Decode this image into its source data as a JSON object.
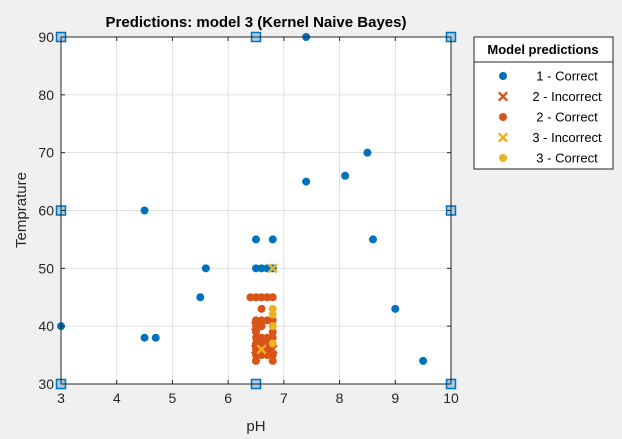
{
  "chart_data": {
    "type": "scatter",
    "title": "Predictions: model 3 (Kernel Naive Bayes)",
    "xlabel": "pH",
    "ylabel": "Temprature",
    "xlim": [
      3,
      10
    ],
    "ylim": [
      30,
      90
    ],
    "xticks": [
      "3",
      "4",
      "5",
      "6",
      "7",
      "8",
      "9",
      "10"
    ],
    "yticks": [
      "30",
      "40",
      "50",
      "60",
      "70",
      "80",
      "90"
    ],
    "grid": true,
    "legend": {
      "title": "Model predictions",
      "placement": "outside-right-top"
    },
    "series": [
      {
        "name": "1 - Correct",
        "marker": "circle",
        "color": "#0072bd",
        "points": [
          [
            3,
            40
          ],
          [
            4.5,
            38
          ],
          [
            4.7,
            38
          ],
          [
            4.5,
            60
          ],
          [
            5.5,
            45
          ],
          [
            5.6,
            50
          ],
          [
            6.5,
            55
          ],
          [
            6.8,
            55
          ],
          [
            6.5,
            50
          ],
          [
            6.6,
            50
          ],
          [
            6.7,
            50
          ],
          [
            6.8,
            50
          ],
          [
            7.4,
            65
          ],
          [
            7.4,
            90
          ],
          [
            8.1,
            66
          ],
          [
            8.5,
            70
          ],
          [
            8.6,
            55
          ],
          [
            9.0,
            43
          ],
          [
            9.5,
            34
          ]
        ]
      },
      {
        "name": "2 - Incorrect",
        "marker": "x",
        "color": "#d95319",
        "points": [
          [
            6.5,
            40
          ],
          [
            6.5,
            36
          ],
          [
            6.8,
            36
          ]
        ]
      },
      {
        "name": "2 - Correct",
        "marker": "circle",
        "color": "#d95319",
        "points": [
          [
            6.4,
            45
          ],
          [
            6.5,
            45
          ],
          [
            6.6,
            45
          ],
          [
            6.7,
            45
          ],
          [
            6.8,
            45
          ],
          [
            6.6,
            43
          ],
          [
            6.5,
            41
          ],
          [
            6.6,
            41
          ],
          [
            6.7,
            41
          ],
          [
            6.8,
            41
          ],
          [
            6.5,
            40
          ],
          [
            6.6,
            40
          ],
          [
            6.5,
            39
          ],
          [
            6.8,
            39
          ],
          [
            6.5,
            38
          ],
          [
            6.6,
            38
          ],
          [
            6.7,
            38
          ],
          [
            6.8,
            38
          ],
          [
            6.5,
            37
          ],
          [
            6.6,
            37
          ],
          [
            6.7,
            37
          ],
          [
            6.5,
            36
          ],
          [
            6.6,
            36
          ],
          [
            6.7,
            36
          ],
          [
            6.5,
            35
          ],
          [
            6.6,
            35
          ],
          [
            6.7,
            35
          ],
          [
            6.8,
            35
          ],
          [
            6.5,
            34
          ],
          [
            6.8,
            34
          ]
        ]
      },
      {
        "name": "3 - Incorrect",
        "marker": "x",
        "color": "#edb120",
        "points": [
          [
            6.8,
            50
          ],
          [
            6.6,
            36
          ]
        ]
      },
      {
        "name": "3 - Correct",
        "marker": "circle",
        "color": "#edb120",
        "points": [
          [
            6.8,
            43
          ],
          [
            6.8,
            42
          ],
          [
            6.8,
            40
          ],
          [
            6.8,
            37
          ]
        ]
      }
    ],
    "boundary_points": {
      "marker": "square",
      "color": "#0072bd",
      "fill": "#a6cce8",
      "points": [
        [
          3,
          30
        ],
        [
          3,
          60
        ],
        [
          3,
          90
        ],
        [
          6.5,
          30
        ],
        [
          6.5,
          90
        ],
        [
          10,
          30
        ],
        [
          10,
          60
        ],
        [
          10,
          90
        ]
      ]
    }
  }
}
